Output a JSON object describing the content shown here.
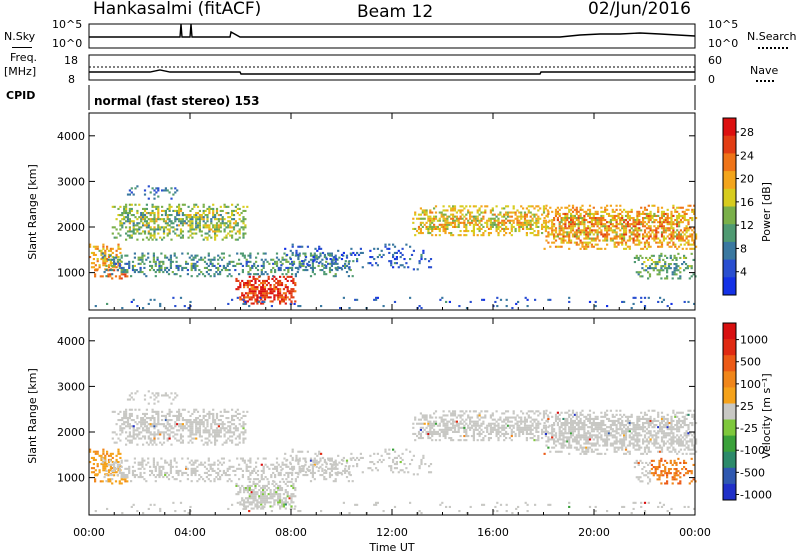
{
  "header": {
    "station": "Hankasalmi (fitACF)",
    "beam": "Beam 12",
    "date": "02/Jun/2016"
  },
  "strip_panels": {
    "noise": {
      "left_label": "N.Sky",
      "right_label": "N.Search",
      "left_ticks": [
        "10^5",
        "10^0"
      ],
      "right_ticks": [
        "10^5",
        "10^0"
      ]
    },
    "freq": {
      "left_label_1": "Freq.",
      "left_label_2": "[MHz]",
      "right_label": "Nave",
      "left_ticks": [
        "18",
        "8"
      ],
      "right_ticks": [
        "60",
        "0"
      ]
    },
    "cpid": {
      "left_label": "CPID",
      "text": "normal (fast stereo) 153"
    }
  },
  "chart_data": [
    {
      "type": "heatmap",
      "title": "",
      "ylabel": "Slant Range [km]",
      "xlabel": "",
      "x_range": [
        "00:00",
        "24:00"
      ],
      "ylim": [
        180,
        4500
      ],
      "yticks": [
        "1000",
        "2000",
        "3000",
        "4000"
      ],
      "colorbar": {
        "label": "Power [dB]",
        "ticks": [
          "4",
          "8",
          "12",
          "16",
          "20",
          "24",
          "28"
        ],
        "colors": [
          "#1432e6",
          "#2a4fd0",
          "#3a78a0",
          "#4f9a72",
          "#7ab04a",
          "#d7cc1e",
          "#f3a51c",
          "#ef7418",
          "#e23d14",
          "#dc1010"
        ]
      }
    },
    {
      "type": "heatmap",
      "title": "",
      "ylabel": "Slant Range [km]",
      "xlabel": "Time UT",
      "x_range": [
        "00:00",
        "24:00"
      ],
      "ylim": [
        180,
        4500
      ],
      "yticks": [
        "1000",
        "2000",
        "3000",
        "4000"
      ],
      "xticks": [
        "00:00",
        "04:00",
        "08:00",
        "12:00",
        "16:00",
        "20:00",
        "00:00"
      ],
      "colorbar": {
        "label": "Velocity [m s⁻¹]",
        "ticks": [
          "1000",
          "500",
          "100",
          "25",
          "-25",
          "-100",
          "-500",
          "-1000"
        ],
        "colors": [
          "#2030c8",
          "#2f58b0",
          "#2c8a6a",
          "#3aa13a",
          "#7ec83c",
          "#c8c8c4",
          "#f5a21a",
          "#f0861a",
          "#ec5a16",
          "#e02a12",
          "#d81010"
        ]
      }
    }
  ]
}
